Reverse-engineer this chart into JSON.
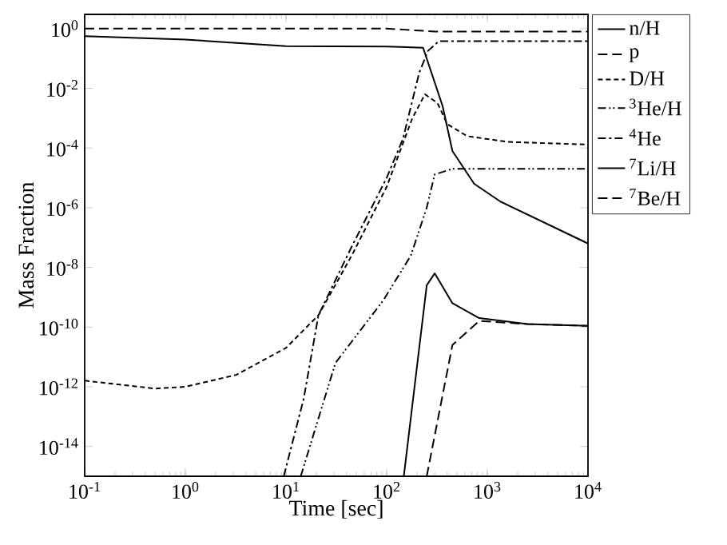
{
  "chart_data": {
    "type": "line",
    "xlabel": "Time [sec]",
    "ylabel": "Mass Fraction",
    "log": "xy",
    "xlim": [
      0.1,
      10000
    ],
    "ylim": [
      1e-15,
      3
    ],
    "xticks": [
      {
        "value": 0.1,
        "label": "10$^{-1}$"
      },
      {
        "value": 1,
        "label": "10$^{0}$"
      },
      {
        "value": 10,
        "label": "10$^{1}$"
      },
      {
        "value": 100,
        "label": "10$^{2}$"
      },
      {
        "value": 1000,
        "label": "10$^{3}$"
      },
      {
        "value": 10000,
        "label": "10$^{4}$"
      }
    ],
    "yticks": [
      {
        "value": 1,
        "label": "10$^{0}$"
      },
      {
        "value": 0.01,
        "label": "10$^{-2}$"
      },
      {
        "value": 0.0001,
        "label": "10$^{-4}$"
      },
      {
        "value": 1e-06,
        "label": "10$^{-6}$"
      },
      {
        "value": 1e-08,
        "label": "10$^{-8}$"
      },
      {
        "value": 1e-10,
        "label": "10$^{-10}$"
      },
      {
        "value": 1e-12,
        "label": "10$^{-12}$"
      },
      {
        "value": 1e-14,
        "label": "10$^{-14}$"
      }
    ],
    "legend": "right",
    "grid": false,
    "marker": "none",
    "series": [
      {
        "name": "n/H",
        "color": "#000000",
        "line_style": "solid",
        "x": [
          0.1,
          1,
          10,
          100,
          230,
          360,
          450,
          740,
          1350,
          10000
        ],
        "values": [
          0.56,
          0.43,
          0.26,
          0.25,
          0.23,
          0.0025,
          7.9e-05,
          6.3e-06,
          1.6e-06,
          6.3e-08
        ]
      },
      {
        "name": "p",
        "color": "#000000",
        "line_style": "dashed",
        "x": [
          0.1,
          1,
          10,
          100,
          300,
          10000
        ],
        "values": [
          1,
          1,
          1,
          1,
          0.8,
          0.8
        ]
      },
      {
        "name": "D/H",
        "color": "#000000",
        "line_style": "dotted",
        "x": [
          0.1,
          0.5,
          1,
          3.2,
          10,
          21,
          45,
          100,
          180,
          240,
          320,
          400,
          630,
          1600,
          10000
        ],
        "values": [
          1.6e-12,
          8.7e-13,
          1e-12,
          2.5e-12,
          2e-11,
          2.5e-10,
          2.5e-08,
          5e-06,
          0.001,
          0.0063,
          0.0032,
          0.00063,
          0.00025,
          0.00016,
          0.00013
        ]
      },
      {
        "name": "$^{3}$He/H",
        "color": "#000000",
        "line_style": "dashdotdot",
        "x": [
          14,
          31,
          93,
          174,
          250,
          300,
          450,
          10000
        ],
        "values": [
          1e-15,
          6.3e-12,
          8e-10,
          2.5e-08,
          1e-06,
          1.3e-05,
          2e-05,
          2e-05
        ]
      },
      {
        "name": "$^{4}$He",
        "color": "#000000",
        "line_style": "dashdot",
        "x": [
          9.5,
          15,
          21,
          45,
          100,
          145,
          210,
          257,
          330,
          10000
        ],
        "values": [
          1e-15,
          4e-13,
          2.5e-10,
          5e-08,
          1e-05,
          0.0002,
          0.032,
          0.18,
          0.38,
          0.38
        ]
      },
      {
        "name": "$^{7}$Li/H",
        "color": "#000000",
        "line_style": "solid",
        "x": [
          148,
          250,
          300,
          450,
          830,
          2500,
          10000
        ],
        "values": [
          1e-15,
          2.5e-09,
          6.3e-09,
          6.3e-10,
          2e-10,
          1.26e-10,
          1.1e-10
        ]
      },
      {
        "name": "$^{7}$Be/H",
        "color": "#000000",
        "line_style": "dashed",
        "x": [
          250,
          450,
          830,
          2500,
          10000
        ],
        "values": [
          1e-15,
          2.5e-11,
          1.6e-10,
          1.26e-10,
          1.1e-10
        ]
      }
    ]
  }
}
